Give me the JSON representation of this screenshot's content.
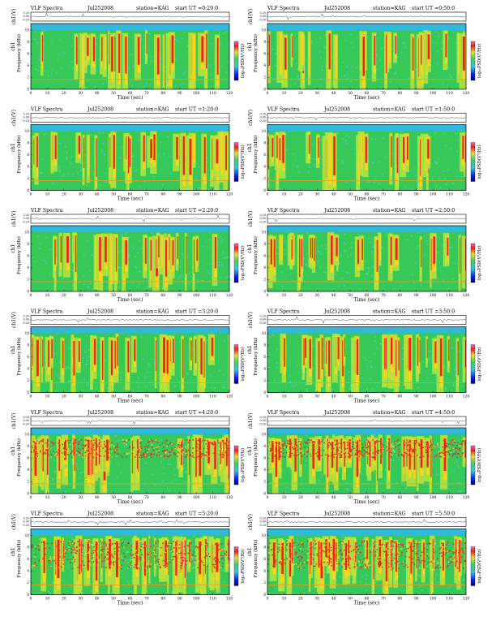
{
  "colors": {
    "spectro_bg": "#37c85a",
    "spectro_mid": "#b9e33c",
    "spectro_hot": "#e8261c",
    "spectro_peak": "#ffd21e",
    "spectro_cold": "#32b8d8",
    "axis": "#000000"
  },
  "labels": {
    "title_prefix": "VLF Spectra",
    "date_left": "Jul252008",
    "date_right": "Jul252008",
    "station": "station=KAG",
    "start": "start  UT =",
    "ch_label": "ch1(V)",
    "ylabel_ch": "ch1",
    "ylabel_freq": "Frequency (kHz)",
    "xlabel": "Time (sec)",
    "cbar_label": "log₁₀PSD(V²/Hz)"
  },
  "chart_data": {
    "type": "heatmap",
    "layout": "6 rows x 2 columns",
    "x_ticks": [
      0,
      10,
      20,
      30,
      40,
      50,
      60,
      70,
      80,
      90,
      100,
      110,
      120
    ],
    "y_ticks": [
      0,
      2,
      4,
      6,
      8,
      10
    ],
    "wave_ticks": [
      "0.20",
      "0.00",
      "-0.20"
    ],
    "xlim": [
      0,
      120
    ],
    "ylim": [
      0,
      10
    ],
    "panels": [
      {
        "start": "0:20:0",
        "column": "left",
        "date": "Jul252008"
      },
      {
        "start": "0:50:0",
        "column": "right",
        "date": "Jul252008"
      },
      {
        "start": "1:20:0",
        "column": "left",
        "date": "Jul252008"
      },
      {
        "start": "1:50:0",
        "column": "right",
        "date": "Jul252008"
      },
      {
        "start": "2:20:0",
        "column": "left",
        "date": "Jul252008"
      },
      {
        "start": "2:50:0",
        "column": "right",
        "date": "Jul252008"
      },
      {
        "start": "3:20:0",
        "column": "left",
        "date": "Jul252008"
      },
      {
        "start": "3:50:0",
        "column": "right",
        "date": "Jul252008"
      },
      {
        "start": "4:20:0",
        "column": "left",
        "date": "Jul252008"
      },
      {
        "start": "4:50:0",
        "column": "right",
        "date": "Jul252008"
      },
      {
        "start": "5:20:0",
        "column": "left",
        "date": "Jul252008"
      },
      {
        "start": "5:50:0",
        "column": "right",
        "date": "Jul252008"
      }
    ]
  }
}
